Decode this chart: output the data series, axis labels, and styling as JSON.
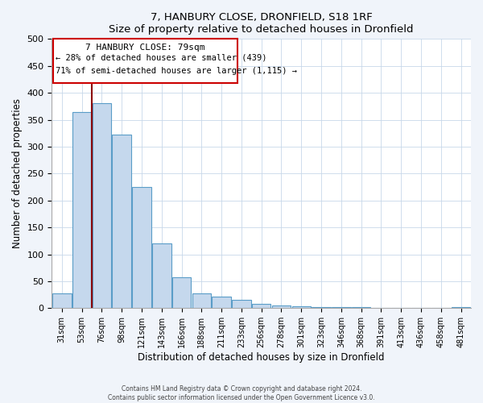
{
  "title": "7, HANBURY CLOSE, DRONFIELD, S18 1RF",
  "subtitle": "Size of property relative to detached houses in Dronfield",
  "xlabel": "Distribution of detached houses by size in Dronfield",
  "ylabel": "Number of detached properties",
  "bar_labels": [
    "31sqm",
    "53sqm",
    "76sqm",
    "98sqm",
    "121sqm",
    "143sqm",
    "166sqm",
    "188sqm",
    "211sqm",
    "233sqm",
    "256sqm",
    "278sqm",
    "301sqm",
    "323sqm",
    "346sqm",
    "368sqm",
    "391sqm",
    "413sqm",
    "436sqm",
    "458sqm",
    "481sqm"
  ],
  "bar_heights": [
    27,
    365,
    381,
    322,
    225,
    120,
    58,
    27,
    22,
    15,
    8,
    5,
    3,
    2,
    2,
    2,
    0,
    0,
    0,
    0,
    2
  ],
  "bar_color": "#c5d8ed",
  "bar_edge_color": "#5a9dc8",
  "property_line_label": "7 HANBURY CLOSE: 79sqm",
  "annotation_line1": "← 28% of detached houses are smaller (439)",
  "annotation_line2": "71% of semi-detached houses are larger (1,115) →",
  "red_line_color": "#8b0000",
  "box_color": "#cc0000",
  "ylim": [
    0,
    500
  ],
  "yticks": [
    0,
    50,
    100,
    150,
    200,
    250,
    300,
    350,
    400,
    450,
    500
  ],
  "footer_line1": "Contains HM Land Registry data © Crown copyright and database right 2024.",
  "footer_line2": "Contains public sector information licensed under the Open Government Licence v3.0.",
  "bg_color": "#f0f4fa",
  "plot_bg_color": "#ffffff",
  "grid_color": "#c8d8ea"
}
